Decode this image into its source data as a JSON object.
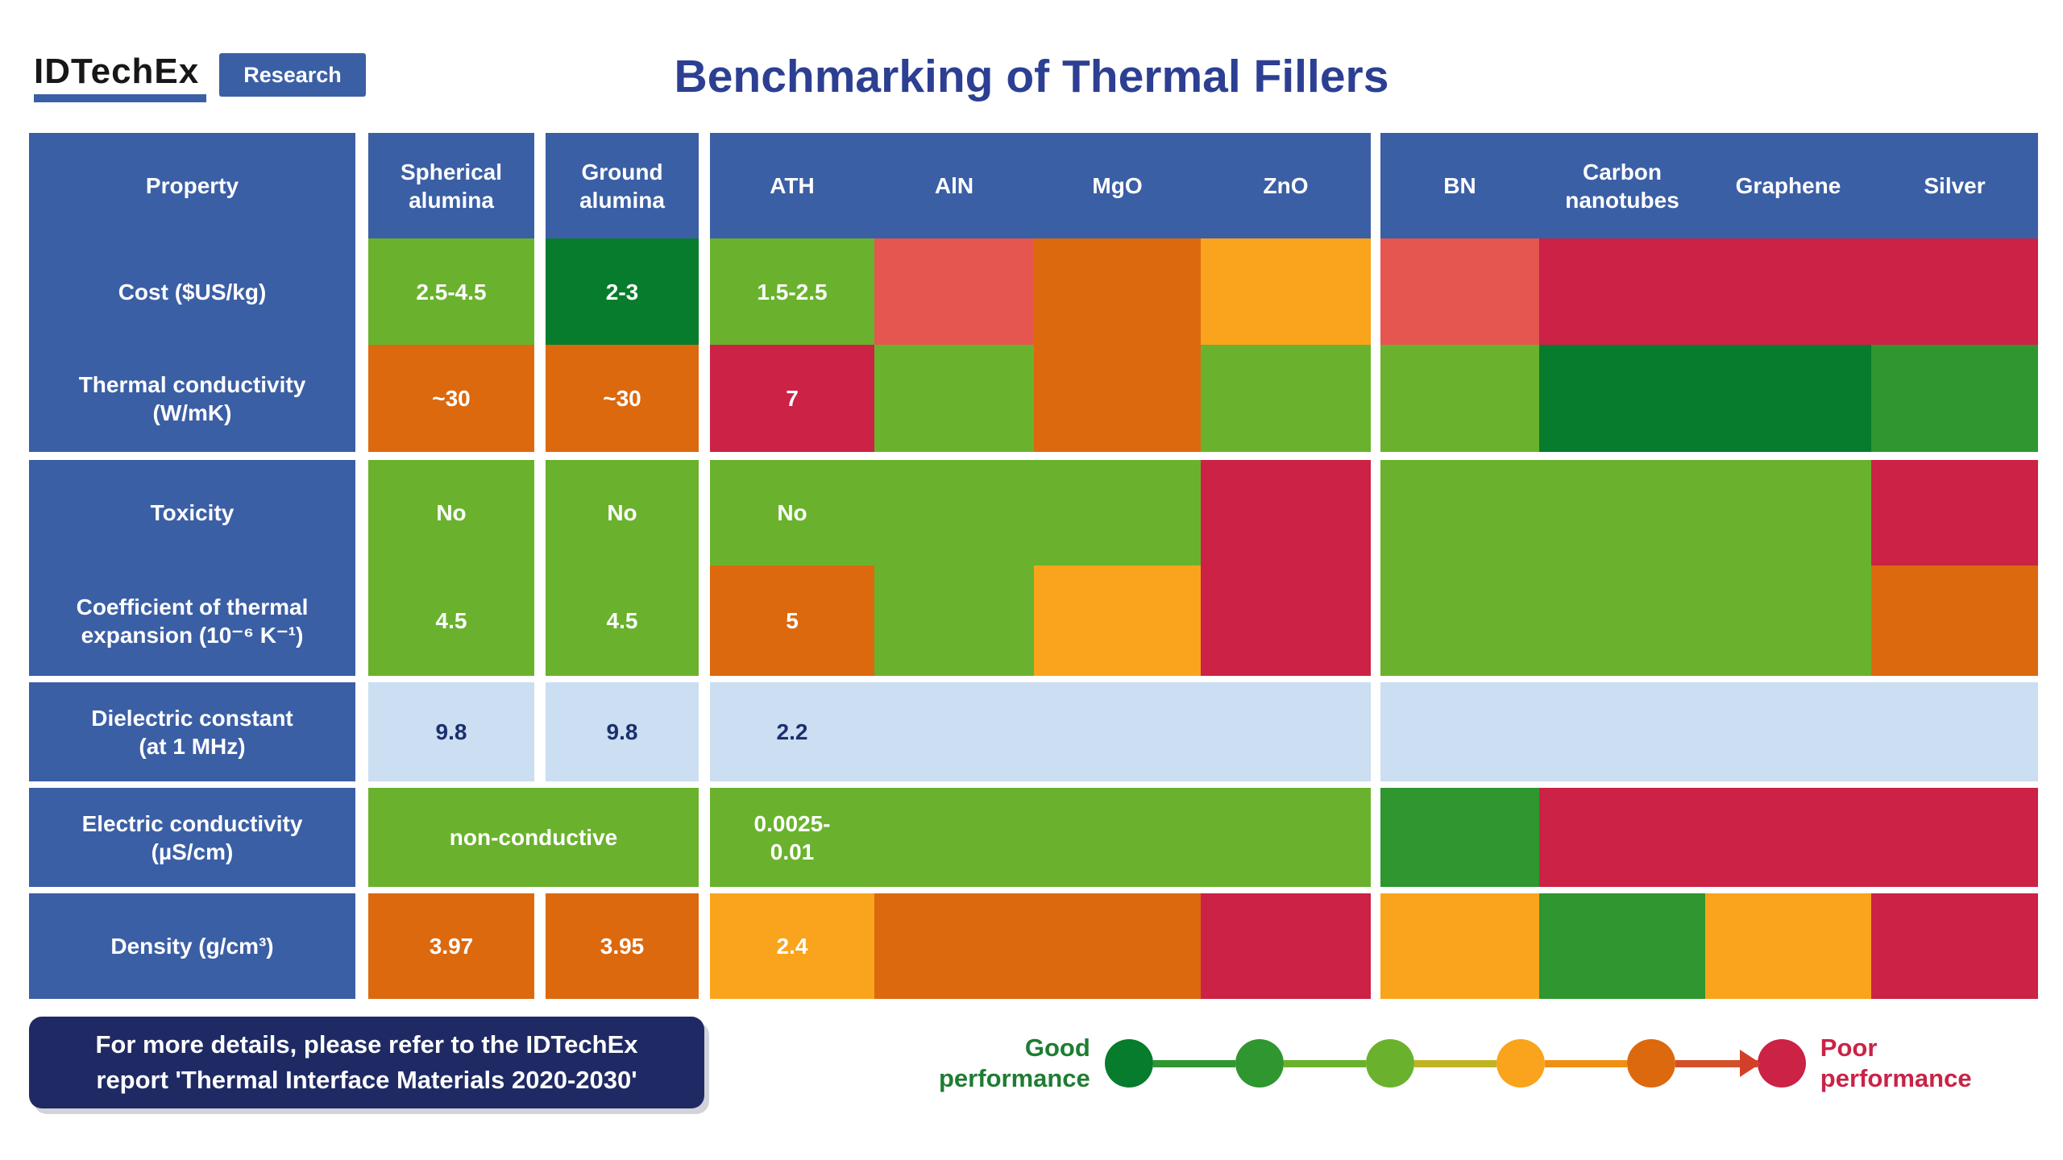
{
  "logo": {
    "brand": "IDTechEx",
    "badge": "Research"
  },
  "title": "Benchmarking of Thermal Fillers",
  "palette": {
    "navy": "#3b5fa5",
    "lightGreen": "#6ab22d",
    "darkGreen": "#067c2c",
    "midGreen": "#2f9630",
    "orange": "#dc690e",
    "amber": "#f9a41c",
    "salmon": "#e4564f",
    "crimson": "#cb2245",
    "lightBlue": "#cbdef2",
    "navyText": "#1b2f6e",
    "titleNavy": "#2c3f92",
    "noteNavy": "#1f2a64",
    "goodGreen": "#1e7d32",
    "poorRed": "#c92346"
  },
  "footer_note": {
    "line1": "For more details, please refer to the IDTechEx",
    "line2": "report 'Thermal Interface Materials 2020-2030'"
  },
  "legend": {
    "good_label": "Good\nperformance",
    "poor_label": "Poor\nperformance",
    "dot_colors": [
      "#067c2c",
      "#2f9630",
      "#6ab22d",
      "#f9a41c",
      "#dc690e",
      "#cb2245"
    ],
    "segment_colors": [
      "#2f9630",
      "#6ab22d",
      "#c0b424",
      "#ef9015",
      "#d2512a"
    ]
  },
  "chart_data": {
    "type": "heatmap",
    "title": "Benchmarking of Thermal Fillers",
    "columns": [
      "Spherical alumina",
      "Ground alumina",
      "ATH",
      "AlN",
      "MgO",
      "ZnO",
      "BN",
      "Carbon nanotubes",
      "Graphene",
      "Silver"
    ],
    "rows": [
      "Cost ($US/kg)",
      "Thermal conductivity (W/mK)",
      "Toxicity",
      "Coefficient of thermal expansion (10⁻⁶ K⁻¹)",
      "Dielectric constant (at 1 MHz)",
      "Electric conductivity (µS/cm)",
      "Density (g/cm³)"
    ],
    "cell_text": [
      [
        "2.5-4.5",
        "2-3",
        "1.5-2.5",
        "",
        "",
        "",
        "",
        "",
        "",
        ""
      ],
      [
        "~30",
        "~30",
        "7",
        "",
        "",
        "",
        "",
        "",
        "",
        ""
      ],
      [
        "No",
        "No",
        "No",
        "",
        "",
        "",
        "",
        "",
        "",
        ""
      ],
      [
        "4.5",
        "4.5",
        "5",
        "",
        "",
        "",
        "",
        "",
        "",
        ""
      ],
      [
        "9.8",
        "9.8",
        "2.2",
        "",
        "",
        "",
        "",
        "",
        "",
        ""
      ],
      [
        "non-conductive",
        "non-conductive",
        "0.0025-0.01",
        "",
        "",
        "",
        "",
        "",
        "",
        ""
      ],
      [
        "3.97",
        "3.95",
        "2.4",
        "",
        "",
        "",
        "",
        "",
        "",
        ""
      ]
    ],
    "cell_colors": [
      [
        "lightGreen",
        "darkGreen",
        "lightGreen",
        "salmon",
        "orange",
        "amber",
        "salmon",
        "crimson",
        "crimson",
        "crimson"
      ],
      [
        "orange",
        "orange",
        "crimson",
        "lightGreen",
        "orange",
        "lightGreen",
        "lightGreen",
        "darkGreen",
        "darkGreen",
        "midGreen"
      ],
      [
        "lightGreen",
        "lightGreen",
        "lightGreen",
        "lightGreen",
        "lightGreen",
        "crimson",
        "lightGreen",
        "lightGreen",
        "lightGreen",
        "crimson"
      ],
      [
        "lightGreen",
        "lightGreen",
        "orange",
        "lightGreen",
        "amber",
        "crimson",
        "lightGreen",
        "lightGreen",
        "lightGreen",
        "orange"
      ],
      [
        "lightBlue",
        "lightBlue",
        "lightBlue",
        "lightBlue",
        "lightBlue",
        "lightBlue",
        "lightBlue",
        "lightBlue",
        "lightBlue",
        "lightBlue"
      ],
      [
        "lightGreen",
        "lightGreen",
        "lightGreen",
        "lightGreen",
        "lightGreen",
        "lightGreen",
        "midGreen",
        "crimson",
        "crimson",
        "crimson"
      ],
      [
        "orange",
        "orange",
        "amber",
        "orange",
        "orange",
        "crimson",
        "amber",
        "midGreen",
        "amber",
        "crimson"
      ]
    ],
    "legend": {
      "left": "Good performance",
      "right": "Poor performance"
    }
  },
  "table": {
    "cells": [
      {
        "name": "col-header-property",
        "r": 1,
        "c": 1,
        "bg": "navy",
        "text": "Property"
      },
      {
        "name": "col-header-spherical-alumina",
        "r": 1,
        "c": 3,
        "bg": "navy",
        "text": "Spherical\nalumina"
      },
      {
        "name": "col-header-ground-alumina",
        "r": 1,
        "c": 5,
        "bg": "navy",
        "text": "Ground\nalumina"
      },
      {
        "name": "col-header-ath",
        "r": 1,
        "c": 7,
        "bg": "navy",
        "text": "ATH"
      },
      {
        "name": "col-header-aln",
        "r": 1,
        "c": 8,
        "bg": "navy",
        "text": "AlN"
      },
      {
        "name": "col-header-mgo",
        "r": 1,
        "c": 9,
        "bg": "navy",
        "text": "MgO"
      },
      {
        "name": "col-header-zno",
        "r": 1,
        "c": 10,
        "bg": "navy",
        "text": "ZnO"
      },
      {
        "name": "col-header-bn",
        "r": 1,
        "c": 12,
        "bg": "navy",
        "text": "BN"
      },
      {
        "name": "col-header-carbon-nanotubes",
        "r": 1,
        "c": 13,
        "bg": "navy",
        "text": "Carbon\nnanotubes"
      },
      {
        "name": "col-header-graphene",
        "r": 1,
        "c": 14,
        "bg": "navy",
        "text": "Graphene"
      },
      {
        "name": "col-header-silver",
        "r": 1,
        "c": 15,
        "bg": "navy",
        "text": "Silver"
      },
      {
        "name": "row-label-cost",
        "r": 2,
        "c": 1,
        "bg": "navy",
        "text": "Cost ($US/kg)"
      },
      {
        "name": "row-label-thermal-conductivity",
        "r": 3,
        "c": 1,
        "bg": "navy",
        "text": "Thermal conductivity\n(W/mK)"
      },
      {
        "name": "row-label-toxicity",
        "r": 5,
        "c": 1,
        "bg": "navy",
        "text": "Toxicity"
      },
      {
        "name": "row-label-cte",
        "r": 6,
        "c": 1,
        "bg": "navy",
        "text": "Coefficient of thermal\nexpansion (10⁻⁶ K⁻¹)"
      },
      {
        "name": "row-label-dielectric-constant",
        "r": 8,
        "c": 1,
        "bg": "navy",
        "text": "Dielectric constant\n(at 1 MHz)"
      },
      {
        "name": "row-label-electric-conductivity",
        "r": 10,
        "c": 1,
        "bg": "navy",
        "text": "Electric conductivity\n(µS/cm)"
      },
      {
        "name": "row-label-density",
        "r": 12,
        "c": 1,
        "bg": "navy",
        "text": "Density (g/cm³)"
      },
      {
        "name": "cost-spherical-alumina",
        "r": 2,
        "c": 3,
        "bg": "lightGreen",
        "text": "2.5-4.5"
      },
      {
        "name": "cost-ground-alumina",
        "r": 2,
        "c": 5,
        "bg": "darkGreen",
        "text": "2-3"
      },
      {
        "name": "cost-ath",
        "r": 2,
        "c": 7,
        "bg": "lightGreen",
        "text": "1.5-2.5"
      },
      {
        "name": "cost-aln",
        "r": 2,
        "c": 8,
        "bg": "salmon"
      },
      {
        "name": "cost-thermal-mgo",
        "r": 2,
        "c": 9,
        "rs": 2,
        "bg": "orange"
      },
      {
        "name": "cost-zno",
        "r": 2,
        "c": 10,
        "bg": "amber"
      },
      {
        "name": "cost-bn",
        "r": 2,
        "c": 12,
        "bg": "salmon"
      },
      {
        "name": "cost-carbon-graphene-silver",
        "r": 2,
        "c": 13,
        "cs": 3,
        "bg": "crimson"
      },
      {
        "name": "tc-spherical-alumina",
        "r": 3,
        "c": 3,
        "bg": "orange",
        "text": "~30"
      },
      {
        "name": "tc-ground-alumina",
        "r": 3,
        "c": 5,
        "bg": "orange",
        "text": "~30"
      },
      {
        "name": "tc-ath",
        "r": 3,
        "c": 7,
        "bg": "crimson",
        "text": "7"
      },
      {
        "name": "tc-aln",
        "r": 3,
        "c": 8,
        "bg": "lightGreen"
      },
      {
        "name": "tc-zno",
        "r": 3,
        "c": 10,
        "bg": "lightGreen"
      },
      {
        "name": "tc-bn",
        "r": 3,
        "c": 12,
        "bg": "lightGreen"
      },
      {
        "name": "tc-carbon-graphene",
        "r": 3,
        "c": 13,
        "cs": 2,
        "bg": "darkGreen"
      },
      {
        "name": "tc-silver",
        "r": 3,
        "c": 15,
        "bg": "midGreen"
      },
      {
        "name": "tox-spherical-alumina",
        "r": 5,
        "c": 3,
        "bg": "lightGreen",
        "text": "No"
      },
      {
        "name": "tox-ground-alumina",
        "r": 5,
        "c": 5,
        "bg": "lightGreen",
        "text": "No"
      },
      {
        "name": "tox-ath",
        "r": 5,
        "c": 7,
        "bg": "lightGreen",
        "text": "No"
      },
      {
        "name": "tox-cte-aln",
        "r": 5,
        "c": 8,
        "rs": 2,
        "bg": "lightGreen"
      },
      {
        "name": "tox-mgo",
        "r": 5,
        "c": 9,
        "bg": "lightGreen"
      },
      {
        "name": "tox-cte-zno",
        "r": 5,
        "c": 10,
        "rs": 2,
        "bg": "crimson"
      },
      {
        "name": "tox-cte-bn",
        "r": 5,
        "c": 12,
        "rs": 2,
        "bg": "lightGreen"
      },
      {
        "name": "tox-cte-carbon-graphene",
        "r": 5,
        "c": 13,
        "cs": 2,
        "rs": 2,
        "bg": "lightGreen"
      },
      {
        "name": "tox-silver",
        "r": 5,
        "c": 15,
        "bg": "crimson"
      },
      {
        "name": "cte-spherical-alumina",
        "r": 6,
        "c": 3,
        "bg": "lightGreen",
        "text": "4.5"
      },
      {
        "name": "cte-ground-alumina",
        "r": 6,
        "c": 5,
        "bg": "lightGreen",
        "text": "4.5"
      },
      {
        "name": "cte-ath",
        "r": 6,
        "c": 7,
        "bg": "orange",
        "text": "5"
      },
      {
        "name": "cte-mgo",
        "r": 6,
        "c": 9,
        "bg": "amber"
      },
      {
        "name": "cte-silver",
        "r": 6,
        "c": 15,
        "bg": "orange"
      },
      {
        "name": "diel-spherical-alumina",
        "r": 8,
        "c": 3,
        "bg": "lightBlue",
        "fg": "navyText",
        "text": "9.8"
      },
      {
        "name": "diel-ground-alumina",
        "r": 8,
        "c": 5,
        "bg": "lightBlue",
        "fg": "navyText",
        "text": "9.8"
      },
      {
        "name": "diel-ath",
        "r": 8,
        "c": 7,
        "bg": "lightBlue",
        "fg": "navyText",
        "text": "2.2"
      },
      {
        "name": "diel-aln-mgo-zno",
        "r": 8,
        "c": 8,
        "cs": 3,
        "bg": "lightBlue"
      },
      {
        "name": "diel-bn-carbon-graphene-silver",
        "r": 8,
        "c": 12,
        "cs": 4,
        "bg": "lightBlue"
      },
      {
        "name": "ec-spherical-ground-alumina",
        "r": 10,
        "c": 3,
        "cs": 3,
        "bg": "lightGreen",
        "text": "non-conductive"
      },
      {
        "name": "ec-ath",
        "r": 10,
        "c": 7,
        "bg": "lightGreen",
        "text": "0.0025-\n0.01"
      },
      {
        "name": "ec-aln-mgo-zno",
        "r": 10,
        "c": 8,
        "cs": 3,
        "bg": "lightGreen"
      },
      {
        "name": "ec-bn",
        "r": 10,
        "c": 12,
        "bg": "midGreen"
      },
      {
        "name": "ec-carbon-graphene-silver",
        "r": 10,
        "c": 13,
        "cs": 3,
        "bg": "crimson"
      },
      {
        "name": "density-spherical-alumina",
        "r": 12,
        "c": 3,
        "bg": "orange",
        "text": "3.97"
      },
      {
        "name": "density-ground-alumina",
        "r": 12,
        "c": 5,
        "bg": "orange",
        "text": "3.95"
      },
      {
        "name": "density-ath",
        "r": 12,
        "c": 7,
        "bg": "amber",
        "text": "2.4"
      },
      {
        "name": "density-aln-mgo",
        "r": 12,
        "c": 8,
        "cs": 2,
        "bg": "orange"
      },
      {
        "name": "density-zno",
        "r": 12,
        "c": 10,
        "bg": "crimson"
      },
      {
        "name": "density-bn",
        "r": 12,
        "c": 12,
        "bg": "amber"
      },
      {
        "name": "density-carbon-nanotubes",
        "r": 12,
        "c": 13,
        "bg": "midGreen"
      },
      {
        "name": "density-graphene",
        "r": 12,
        "c": 14,
        "bg": "amber"
      },
      {
        "name": "density-silver",
        "r": 12,
        "c": 15,
        "bg": "crimson"
      }
    ]
  }
}
